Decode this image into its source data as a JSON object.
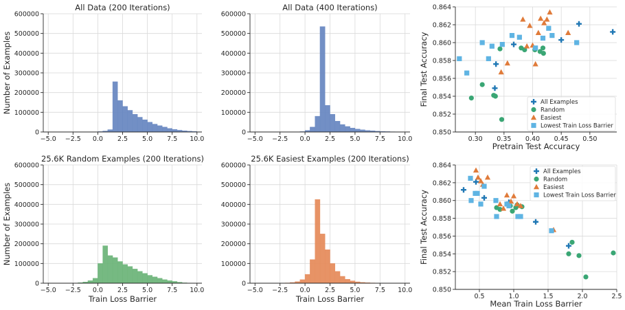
{
  "chart_data": [
    {
      "id": "h1",
      "type": "bar",
      "title": "All Data (200 Iterations)",
      "xlabel": "",
      "ylabel": "Number of Examples",
      "xlim": [
        -5.5,
        10.5
      ],
      "ylim": [
        0,
        600000
      ],
      "xticks": [
        -5.0,
        -2.5,
        0.0,
        2.5,
        5.0,
        7.5,
        10.0
      ],
      "yticks": [
        0,
        100000,
        200000,
        300000,
        400000,
        500000,
        600000
      ],
      "color": "#6a89c2",
      "bin_start": -5.0,
      "bin_width": 0.5,
      "values": [
        0,
        0,
        0,
        0,
        0,
        0,
        0,
        0,
        0,
        800,
        2000,
        5000,
        12000,
        255000,
        160000,
        130000,
        110000,
        90000,
        75000,
        62000,
        50000,
        40000,
        32000,
        25000,
        18000,
        13000,
        9000,
        6000,
        4000,
        2500
      ]
    },
    {
      "id": "h2",
      "type": "bar",
      "title": "All Data (400 Iterations)",
      "xlabel": "",
      "ylabel": "",
      "xlim": [
        -5.5,
        10.5
      ],
      "ylim": [
        0,
        600000
      ],
      "xticks": [
        -5.0,
        -2.5,
        0.0,
        2.5,
        5.0,
        7.5,
        10.0
      ],
      "yticks": [
        0,
        100000,
        200000,
        300000,
        400000,
        500000,
        600000
      ],
      "color": "#6a89c2",
      "bin_start": -5.0,
      "bin_width": 0.5,
      "values": [
        0,
        0,
        0,
        0,
        0,
        0,
        0,
        0,
        0,
        2000,
        8000,
        25000,
        80000,
        535000,
        135000,
        90000,
        55000,
        38000,
        28000,
        20000,
        15000,
        11000,
        8000,
        6000,
        4000,
        2800,
        2000,
        1300,
        800,
        400
      ]
    },
    {
      "id": "h3",
      "type": "bar",
      "title": "25.6K Random Examples (200 Iterations)",
      "xlabel": "Train Loss Barrier",
      "ylabel": "Number of Examples",
      "xlim": [
        -5.5,
        10.5
      ],
      "ylim": [
        0,
        600000
      ],
      "xticks": [
        -5.0,
        -2.5,
        0.0,
        2.5,
        5.0,
        7.5,
        10.0
      ],
      "yticks": [
        0,
        100000,
        200000,
        300000,
        400000,
        500000,
        600000
      ],
      "color": "#6fb57b",
      "bin_start": -5.0,
      "bin_width": 0.5,
      "values": [
        0,
        0,
        0,
        0,
        0,
        800,
        2500,
        6000,
        13000,
        25000,
        100000,
        190000,
        140000,
        130000,
        110000,
        95000,
        85000,
        72000,
        60000,
        50000,
        40000,
        32000,
        25000,
        18000,
        13000,
        9000,
        5000,
        2000
      ]
    },
    {
      "id": "h4",
      "type": "bar",
      "title": "25.6K Easiest Examples (200 Iterations)",
      "xlabel": "Train Loss Barrier",
      "ylabel": "",
      "xlim": [
        -5.5,
        10.5
      ],
      "ylim": [
        0,
        600000
      ],
      "xticks": [
        -5.0,
        -2.5,
        0.0,
        2.5,
        5.0,
        7.5,
        10.0
      ],
      "yticks": [
        0,
        100000,
        200000,
        300000,
        400000,
        500000,
        600000
      ],
      "color": "#e68d5e",
      "bin_start": -5.0,
      "bin_width": 0.5,
      "values": [
        0,
        0,
        0,
        0,
        0,
        600,
        1500,
        3500,
        8000,
        18000,
        45000,
        120000,
        425000,
        250000,
        170000,
        100000,
        60000,
        35000,
        20000,
        12000,
        7000,
        4000,
        2500,
        1500,
        900,
        500
      ]
    },
    {
      "id": "s1",
      "type": "scatter",
      "title": "",
      "xlabel": "Pretrain Test Accuracy",
      "ylabel": "Final Test Accuracy",
      "xlim": [
        0.265,
        0.547
      ],
      "ylim": [
        0.85,
        0.864
      ],
      "xticks": [
        0.3,
        0.35,
        0.4,
        0.45,
        0.5
      ],
      "yticks": [
        0.85,
        0.852,
        0.854,
        0.856,
        0.858,
        0.86,
        0.862,
        0.864
      ],
      "legend_position": "lower-right",
      "series": [
        {
          "name": "All Examples",
          "marker": "plus",
          "color": "#1f77b4",
          "x": [
            0.54,
            0.481,
            0.45,
            0.367,
            0.336,
            0.334
          ],
          "y": [
            0.8612,
            0.8621,
            0.8603,
            0.8598,
            0.8576,
            0.8549
          ]
        },
        {
          "name": "Random",
          "marker": "circle",
          "color": "#3aa674",
          "x": [
            0.293,
            0.312,
            0.332,
            0.335,
            0.346,
            0.343,
            0.38,
            0.386,
            0.404,
            0.413,
            0.418,
            0.419
          ],
          "y": [
            0.8538,
            0.8553,
            0.8541,
            0.854,
            0.8514,
            0.8593,
            0.8594,
            0.8592,
            0.8592,
            0.859,
            0.8594,
            0.8588
          ]
        },
        {
          "name": "Easiest",
          "marker": "triangle",
          "color": "#e07b3a",
          "x": [
            0.345,
            0.356,
            0.383,
            0.39,
            0.395,
            0.4,
            0.405,
            0.41,
            0.414,
            0.42,
            0.425,
            0.43,
            0.462
          ],
          "y": [
            0.8567,
            0.8577,
            0.8626,
            0.8596,
            0.8619,
            0.8597,
            0.8576,
            0.8611,
            0.8627,
            0.8622,
            0.8626,
            0.8634,
            0.8611
          ]
        },
        {
          "name": "Lowest Train Loss Barrier",
          "marker": "square",
          "color": "#5fb4e3",
          "x": [
            0.272,
            0.285,
            0.312,
            0.323,
            0.329,
            0.347,
            0.364,
            0.377,
            0.405,
            0.418,
            0.428,
            0.434,
            0.477
          ],
          "y": [
            0.8582,
            0.8566,
            0.86,
            0.8582,
            0.8596,
            0.8598,
            0.8608,
            0.8606,
            0.8594,
            0.8605,
            0.8616,
            0.8608,
            0.86
          ]
        }
      ]
    },
    {
      "id": "s2",
      "type": "scatter",
      "title": "",
      "xlabel": "Mean Train Loss Barrier",
      "ylabel": "Final Test Accuracy",
      "xlim": [
        0.15,
        2.5
      ],
      "ylim": [
        0.85,
        0.864
      ],
      "xticks": [
        0.5,
        1.0,
        1.5,
        2.0,
        2.5
      ],
      "yticks": [
        0.85,
        0.852,
        0.854,
        0.856,
        0.858,
        0.86,
        0.862,
        0.864
      ],
      "legend_position": "upper-right",
      "series": [
        {
          "name": "All Examples",
          "marker": "plus",
          "color": "#1f77b4",
          "x": [
            0.27,
            0.45,
            0.57,
            0.93,
            1.32,
            1.8
          ],
          "y": [
            0.8612,
            0.8621,
            0.8603,
            0.8598,
            0.8576,
            0.8549
          ]
        },
        {
          "name": "Random",
          "marker": "circle",
          "color": "#3aa674",
          "x": [
            0.75,
            0.8,
            0.95,
            1.05,
            1.12,
            1.8,
            1.85,
            1.95,
            2.05,
            2.45,
            1.03,
            0.98
          ],
          "y": [
            0.8592,
            0.859,
            0.8594,
            0.8595,
            0.8593,
            0.854,
            0.8553,
            0.8538,
            0.8514,
            0.8541,
            0.8592,
            0.8588
          ]
        },
        {
          "name": "Easiest",
          "marker": "triangle",
          "color": "#e07b3a",
          "x": [
            0.45,
            0.48,
            0.52,
            0.55,
            0.62,
            0.8,
            0.85,
            0.9,
            0.96,
            1.0,
            1.05,
            1.1,
            1.58
          ],
          "y": [
            0.8634,
            0.8626,
            0.8622,
            0.8618,
            0.8626,
            0.8596,
            0.8591,
            0.8606,
            0.8599,
            0.8605,
            0.8596,
            0.8594,
            0.8567
          ]
        },
        {
          "name": "Lowest Train Loss Barrier",
          "marker": "square",
          "color": "#5fb4e3",
          "x": [
            0.37,
            0.38,
            0.44,
            0.47,
            0.52,
            0.57,
            0.74,
            0.75,
            0.9,
            0.93,
            1.06,
            1.1,
            1.55
          ],
          "y": [
            0.8625,
            0.86,
            0.8608,
            0.8608,
            0.8596,
            0.8616,
            0.86,
            0.8582,
            0.8596,
            0.8594,
            0.8582,
            0.8582,
            0.8566
          ]
        }
      ]
    }
  ]
}
